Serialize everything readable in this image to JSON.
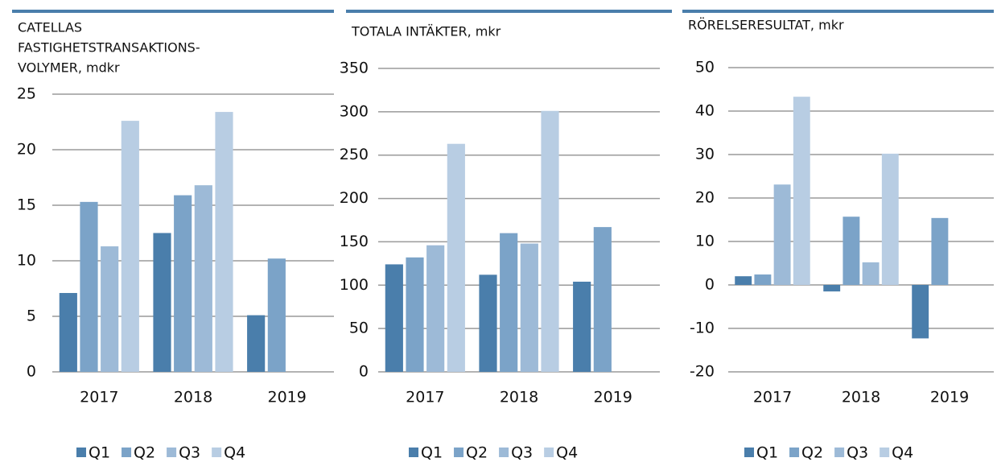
{
  "chart_data": [
    {
      "type": "bar",
      "title": [
        "CATELLAS",
        "FASTIGHETSTRANSAKTIONS-",
        "VOLYMER, mdkr"
      ],
      "categories": [
        "2017",
        "2018",
        "2019"
      ],
      "series": [
        {
          "name": "Q1",
          "color": "#4a7eab",
          "values": [
            7.1,
            12.5,
            5.1
          ]
        },
        {
          "name": "Q2",
          "color": "#7ba3c8",
          "values": [
            15.3,
            15.9,
            10.2
          ]
        },
        {
          "name": "Q3",
          "color": "#9dbad7",
          "values": [
            11.3,
            16.8,
            null
          ]
        },
        {
          "name": "Q4",
          "color": "#b8cde3",
          "values": [
            22.6,
            23.4,
            null
          ]
        }
      ],
      "ylim": [
        0,
        25
      ],
      "yticks": [
        0,
        5,
        10,
        15,
        20,
        25
      ],
      "grid": true
    },
    {
      "type": "bar",
      "title": [
        "TOTALA INTÄKTER, mkr"
      ],
      "categories": [
        "2017",
        "2018",
        "2019"
      ],
      "series": [
        {
          "name": "Q1",
          "color": "#4a7eab",
          "values": [
            124,
            112,
            104
          ]
        },
        {
          "name": "Q2",
          "color": "#7ba3c8",
          "values": [
            132,
            160,
            167
          ]
        },
        {
          "name": "Q3",
          "color": "#9dbad7",
          "values": [
            146,
            148,
            null
          ]
        },
        {
          "name": "Q4",
          "color": "#b8cde3",
          "values": [
            263,
            301,
            null
          ]
        }
      ],
      "ylim": [
        0,
        350
      ],
      "yticks": [
        0,
        50,
        100,
        150,
        200,
        250,
        300,
        350
      ],
      "grid": true
    },
    {
      "type": "bar",
      "title": [
        "RÖRELSERESULTAT, mkr"
      ],
      "categories": [
        "2017",
        "2018",
        "2019"
      ],
      "series": [
        {
          "name": "Q1",
          "color": "#4a7eab",
          "values": [
            2.0,
            -1.5,
            -12.3
          ]
        },
        {
          "name": "Q2",
          "color": "#7ba3c8",
          "values": [
            2.4,
            15.7,
            15.4
          ]
        },
        {
          "name": "Q3",
          "color": "#9dbad7",
          "values": [
            23.1,
            5.2,
            null
          ]
        },
        {
          "name": "Q4",
          "color": "#b8cde3",
          "values": [
            43.3,
            30.2,
            null
          ]
        }
      ],
      "ylim": [
        -20,
        50
      ],
      "yticks": [
        -20,
        -10,
        0,
        10,
        20,
        30,
        40,
        50
      ],
      "grid": true
    }
  ]
}
